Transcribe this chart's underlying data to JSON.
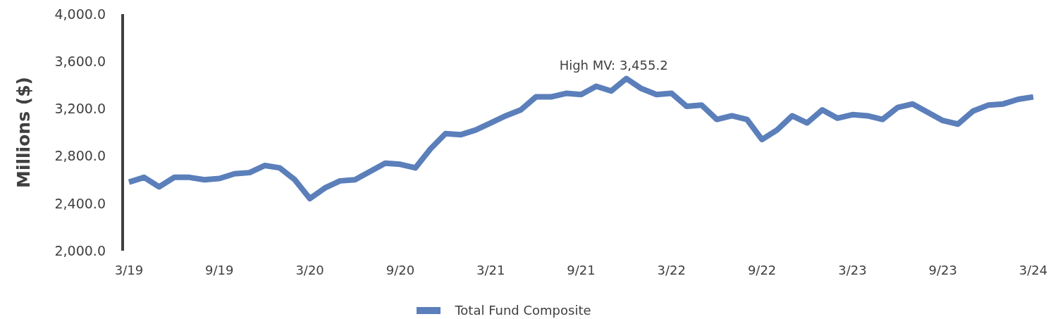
{
  "chart_data": {
    "type": "line",
    "ylabel": "Millions ($)",
    "categories": [
      "3/19",
      null,
      null,
      null,
      null,
      null,
      "9/19",
      null,
      null,
      null,
      null,
      null,
      "3/20",
      null,
      null,
      null,
      null,
      null,
      "9/20",
      null,
      null,
      null,
      null,
      null,
      "3/21",
      null,
      null,
      null,
      null,
      null,
      "9/21",
      null,
      null,
      null,
      null,
      null,
      "3/22",
      null,
      null,
      null,
      null,
      null,
      "9/22",
      null,
      null,
      null,
      null,
      null,
      "3/23",
      null,
      null,
      null,
      null,
      null,
      "9/23",
      null,
      null,
      null,
      null,
      null,
      "3/24"
    ],
    "series": [
      {
        "name": "Total Fund Composite",
        "color": "#5b7fba",
        "values": [
          2580,
          2620,
          2540,
          2620,
          2620,
          2600,
          2610,
          2650,
          2660,
          2720,
          2700,
          2600,
          2440,
          2530,
          2590,
          2600,
          2670,
          2740,
          2730,
          2700,
          2860,
          2990,
          2980,
          3020,
          3080,
          3140,
          3190,
          3300,
          3300,
          3330,
          3320,
          3390,
          3350,
          3455.2,
          3370,
          3320,
          3330,
          3220,
          3230,
          3110,
          3140,
          3110,
          2940,
          3020,
          3140,
          3080,
          3190,
          3120,
          3150,
          3140,
          3110,
          3210,
          3240,
          3170,
          3100,
          3070,
          3180,
          3230,
          3240,
          3280,
          3300
        ],
        "value_labels": [
          null,
          null,
          null,
          null,
          null,
          null,
          null,
          null,
          null,
          null,
          null,
          null,
          null,
          null,
          null,
          null,
          null,
          null,
          null,
          null,
          null,
          null,
          null,
          null,
          null,
          null,
          null,
          null,
          null,
          null,
          null,
          null,
          null,
          "High MV: 3,455.2",
          null,
          null,
          null,
          null,
          null,
          null,
          null,
          null,
          null,
          null,
          null,
          null,
          null,
          null,
          null,
          null,
          null,
          null,
          null,
          null,
          null,
          null,
          null,
          null,
          null,
          null,
          null
        ]
      }
    ],
    "ylim": [
      2000,
      4000
    ],
    "yticks": [
      {
        "value": 2000,
        "label": "2,000.0"
      },
      {
        "value": 2400,
        "label": "2,400.0"
      },
      {
        "value": 2800,
        "label": "2,800.0"
      },
      {
        "value": 3200,
        "label": "3,200.0"
      },
      {
        "value": 3600,
        "label": "3,600.0"
      },
      {
        "value": 4000,
        "label": "4,000.0"
      }
    ],
    "legend": "bottom",
    "marker": "none",
    "line_style": "solid"
  }
}
